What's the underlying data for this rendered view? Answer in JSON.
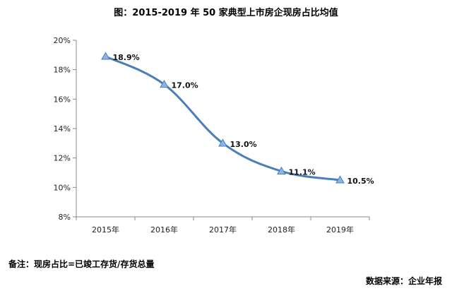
{
  "chart_data": {
    "type": "line",
    "title": "图：2015-2019 年 50 家典型上市房企现房占比均值",
    "categories": [
      "2015年",
      "2016年",
      "2017年",
      "2018年",
      "2019年"
    ],
    "series": [
      {
        "values": [
          18.9,
          17.0,
          13.0,
          11.1,
          10.5
        ],
        "labels": [
          "18.9%",
          "17.0%",
          "13.0%",
          "11.1%",
          "10.5%"
        ]
      }
    ],
    "ylim": [
      8,
      20
    ],
    "yticks": [
      "8%",
      "10%",
      "12%",
      "14%",
      "16%",
      "18%",
      "20%"
    ],
    "grid": false,
    "line_color": "#4A7EBB",
    "marker_color": "#8EB4E3"
  },
  "notes": {
    "left": "备注：现房占比=已竣工存货/存货总量",
    "right": "数据来源：企业年报"
  }
}
